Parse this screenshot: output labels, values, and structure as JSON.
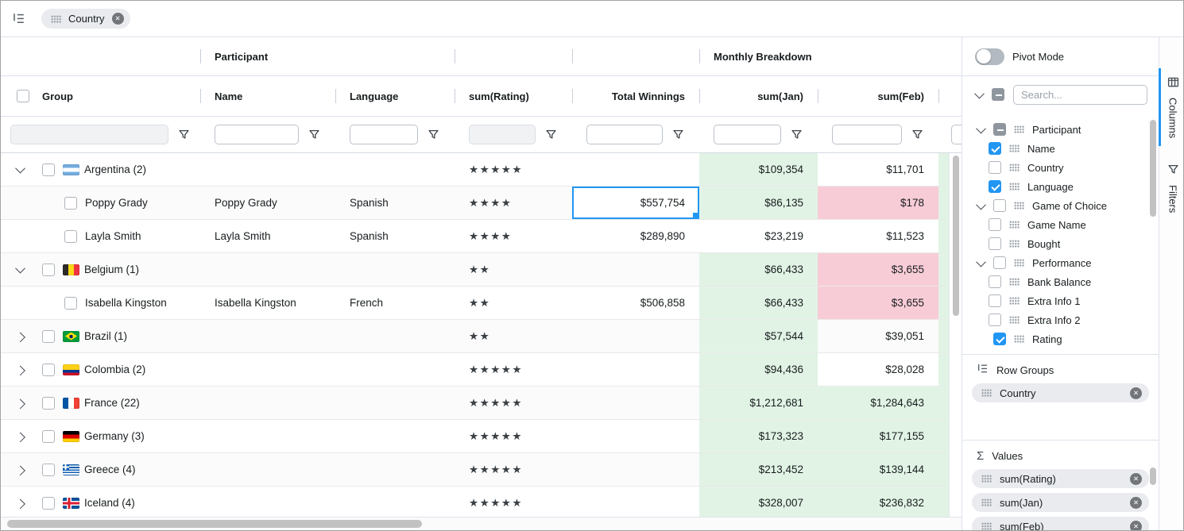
{
  "colors": {
    "accent": "#2196f3",
    "positive_cell_bg": "#e1f3e5",
    "negative_cell_bg": "#f8ccd7"
  },
  "toolbar": {
    "group_chips": [
      {
        "label": "Country"
      }
    ]
  },
  "header": {
    "groups": [
      {
        "label": "Participant"
      },
      {
        "label": "Monthly Breakdown"
      }
    ],
    "columns": [
      {
        "id": "group",
        "label": "Group",
        "align": "left",
        "has_checkbox": true,
        "filter_disabled": true
      },
      {
        "id": "name",
        "label": "Name",
        "align": "left",
        "filter_disabled": false
      },
      {
        "id": "language",
        "label": "Language",
        "align": "left",
        "filter_disabled": false
      },
      {
        "id": "rating",
        "label": "sum(Rating)",
        "align": "left",
        "filter_disabled": true
      },
      {
        "id": "winnings",
        "label": "Total Winnings",
        "align": "right",
        "filter_disabled": false
      },
      {
        "id": "jan",
        "label": "sum(Jan)",
        "align": "right",
        "filter_disabled": false
      },
      {
        "id": "feb",
        "label": "sum(Feb)",
        "align": "right",
        "filter_disabled": false
      }
    ]
  },
  "rows": [
    {
      "type": "group",
      "expanded": true,
      "flag": "argentina",
      "label": "Argentina (2)",
      "name": "",
      "language": "",
      "stars": "★★★★★",
      "winnings": "",
      "jan": "$109,354",
      "jan_bg": "green",
      "feb": "$11,701",
      "feb_bg": "none"
    },
    {
      "type": "leaf",
      "label": "Poppy Grady",
      "name": "Poppy Grady",
      "language": "Spanish",
      "stars": "★★★★",
      "winnings": "$557,754",
      "winnings_focused": true,
      "jan": "$86,135",
      "jan_bg": "green",
      "feb": "$178",
      "feb_bg": "pink"
    },
    {
      "type": "leaf",
      "label": "Layla Smith",
      "name": "Layla Smith",
      "language": "Spanish",
      "stars": "★★★★",
      "winnings": "$289,890",
      "jan": "$23,219",
      "jan_bg": "none",
      "feb": "$11,523",
      "feb_bg": "none"
    },
    {
      "type": "group",
      "expanded": true,
      "flag": "belgium",
      "label": "Belgium (1)",
      "name": "",
      "language": "",
      "stars": "★★",
      "winnings": "",
      "jan": "$66,433",
      "jan_bg": "green",
      "feb": "$3,655",
      "feb_bg": "pink"
    },
    {
      "type": "leaf",
      "label": "Isabella Kingston",
      "name": "Isabella Kingston",
      "language": "French",
      "stars": "★★",
      "winnings": "$506,858",
      "jan": "$66,433",
      "jan_bg": "green",
      "feb": "$3,655",
      "feb_bg": "pink"
    },
    {
      "type": "group",
      "expanded": false,
      "flag": "brazil",
      "label": "Brazil (1)",
      "name": "",
      "language": "",
      "stars": "★★",
      "winnings": "",
      "jan": "$57,544",
      "jan_bg": "green",
      "feb": "$39,051",
      "feb_bg": "none"
    },
    {
      "type": "group",
      "expanded": false,
      "flag": "colombia",
      "label": "Colombia (2)",
      "name": "",
      "language": "",
      "stars": "★★★★★",
      "winnings": "",
      "jan": "$94,436",
      "jan_bg": "green",
      "feb": "$28,028",
      "feb_bg": "none"
    },
    {
      "type": "group",
      "expanded": false,
      "flag": "france",
      "label": "France (22)",
      "name": "",
      "language": "",
      "stars": "★★★★★",
      "winnings": "",
      "jan": "$1,212,681",
      "jan_bg": "green",
      "feb": "$1,284,643",
      "feb_bg": "green"
    },
    {
      "type": "group",
      "expanded": false,
      "flag": "germany",
      "label": "Germany (3)",
      "name": "",
      "language": "",
      "stars": "★★★★★",
      "winnings": "",
      "jan": "$173,323",
      "jan_bg": "green",
      "feb": "$177,155",
      "feb_bg": "green"
    },
    {
      "type": "group",
      "expanded": false,
      "flag": "greece",
      "label": "Greece (4)",
      "name": "",
      "language": "",
      "stars": "★★★★★",
      "winnings": "",
      "jan": "$213,452",
      "jan_bg": "green",
      "feb": "$139,144",
      "feb_bg": "green"
    },
    {
      "type": "group",
      "expanded": false,
      "flag": "iceland",
      "label": "Iceland (4)",
      "name": "",
      "language": "",
      "stars": "★★★★★",
      "winnings": "",
      "jan": "$328,007",
      "jan_bg": "green",
      "feb": "$236,832",
      "feb_bg": "green"
    }
  ],
  "sidebar": {
    "pivot_label": "Pivot Mode",
    "pivot_on": false,
    "search_placeholder": "Search...",
    "tree": [
      {
        "label": "Participant",
        "level": 0,
        "group": true,
        "expanded": true,
        "check": "indeterminate"
      },
      {
        "label": "Name",
        "level": 1,
        "check": "checked"
      },
      {
        "label": "Country",
        "level": 1,
        "check": "unchecked"
      },
      {
        "label": "Language",
        "level": 1,
        "check": "checked"
      },
      {
        "label": "Game of Choice",
        "level": 0,
        "group": true,
        "expanded": true,
        "check": "unchecked"
      },
      {
        "label": "Game Name",
        "level": 1,
        "check": "unchecked"
      },
      {
        "label": "Bought",
        "level": 1,
        "check": "unchecked"
      },
      {
        "label": "Performance",
        "level": 0,
        "group": true,
        "expanded": true,
        "check": "unchecked"
      },
      {
        "label": "Bank Balance",
        "level": 1,
        "check": "unchecked"
      },
      {
        "label": "Extra Info 1",
        "level": 1,
        "check": "unchecked"
      },
      {
        "label": "Extra Info 2",
        "level": 1,
        "check": "unchecked"
      },
      {
        "label": "Rating",
        "level": 0,
        "group": false,
        "check": "checked"
      }
    ],
    "row_groups": {
      "title": "Row Groups",
      "chips": [
        {
          "label": "Country"
        }
      ]
    },
    "values": {
      "title": "Values",
      "chips": [
        {
          "label": "sum(Rating)"
        },
        {
          "label": "sum(Jan)"
        },
        {
          "label": "sum(Feb)"
        }
      ]
    },
    "tabs": [
      {
        "label": "Columns",
        "active": true
      },
      {
        "label": "Filters",
        "active": false
      }
    ]
  }
}
